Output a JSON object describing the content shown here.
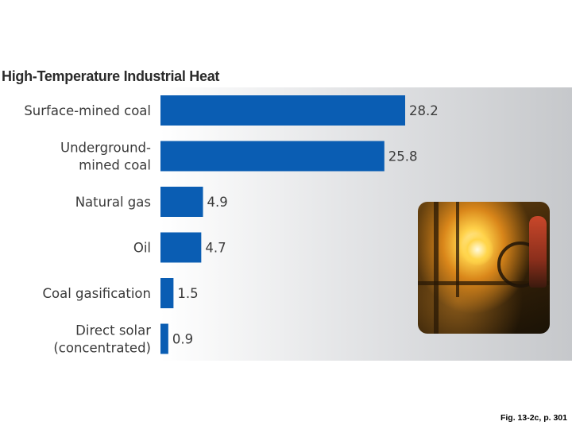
{
  "chart_data": {
    "type": "bar",
    "orientation": "horizontal",
    "title": "High-Temperature Industrial Heat",
    "categories": [
      [
        "Surface-mined coal"
      ],
      [
        "Underground-",
        "mined coal"
      ],
      [
        "Natural gas"
      ],
      [
        "Oil"
      ],
      [
        "Coal gasification"
      ],
      [
        "Direct solar",
        "(concentrated)"
      ]
    ],
    "values": [
      28.2,
      25.8,
      4.9,
      4.7,
      1.5,
      0.9
    ],
    "value_labels": [
      "28.2",
      "25.8",
      "4.9",
      "4.7",
      "1.5",
      "0.9"
    ],
    "xlim": [
      0,
      30
    ],
    "grid": false,
    "legend": "none",
    "bar_color": "#0a5db3",
    "label_color": "#3a3a3a"
  },
  "photo": {
    "icon": "industrial-furnace-photo"
  },
  "caption": "Fig. 13-2c, p. 301"
}
